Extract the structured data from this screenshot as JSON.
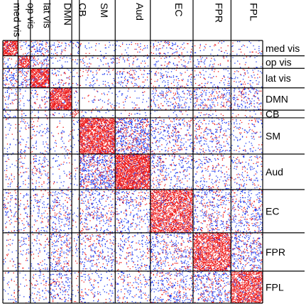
{
  "chart_data": {
    "type": "heatmap",
    "title": "",
    "xlabel": "",
    "ylabel": "",
    "networks": [
      "med vis",
      "op vis",
      "lat vis",
      "DMN",
      "CB",
      "SM",
      "Aud",
      "EC",
      "FPR",
      "FPL"
    ],
    "network_sizes": [
      22,
      18,
      28,
      32,
      11,
      52,
      51,
      62,
      55,
      46
    ],
    "legend": [],
    "colors": {
      "positive": "#ee1c1c",
      "negative": "#1f3cf0",
      "grid": "#000000",
      "background": "#ffffff"
    },
    "cell_density": {
      "description_free": true,
      "rows": [
        [
          0.55,
          0.05,
          0.1,
          0.06,
          0.08,
          0.03,
          0.03,
          0.05,
          0.03,
          0.03
        ],
        [
          0.05,
          0.45,
          0.1,
          0.03,
          0.03,
          0.04,
          0.04,
          0.04,
          0.04,
          0.03
        ],
        [
          0.1,
          0.1,
          0.55,
          0.05,
          0.05,
          0.05,
          0.05,
          0.05,
          0.04,
          0.04
        ],
        [
          0.06,
          0.03,
          0.05,
          0.55,
          0.05,
          0.03,
          0.03,
          0.08,
          0.1,
          0.08
        ],
        [
          0.08,
          0.03,
          0.05,
          0.05,
          0.2,
          0.04,
          0.03,
          0.03,
          0.03,
          0.03
        ],
        [
          0.03,
          0.04,
          0.05,
          0.03,
          0.04,
          0.5,
          0.2,
          0.08,
          0.08,
          0.04
        ],
        [
          0.03,
          0.04,
          0.05,
          0.03,
          0.03,
          0.2,
          0.55,
          0.08,
          0.06,
          0.05
        ],
        [
          0.05,
          0.04,
          0.05,
          0.08,
          0.03,
          0.08,
          0.08,
          0.4,
          0.1,
          0.1
        ],
        [
          0.03,
          0.04,
          0.04,
          0.1,
          0.03,
          0.08,
          0.06,
          0.1,
          0.4,
          0.12
        ],
        [
          0.03,
          0.03,
          0.04,
          0.08,
          0.03,
          0.04,
          0.05,
          0.1,
          0.12,
          0.4
        ]
      ],
      "positive_fraction_diagonal": 0.92,
      "positive_fraction_offdiagonal": 0.35
    }
  }
}
